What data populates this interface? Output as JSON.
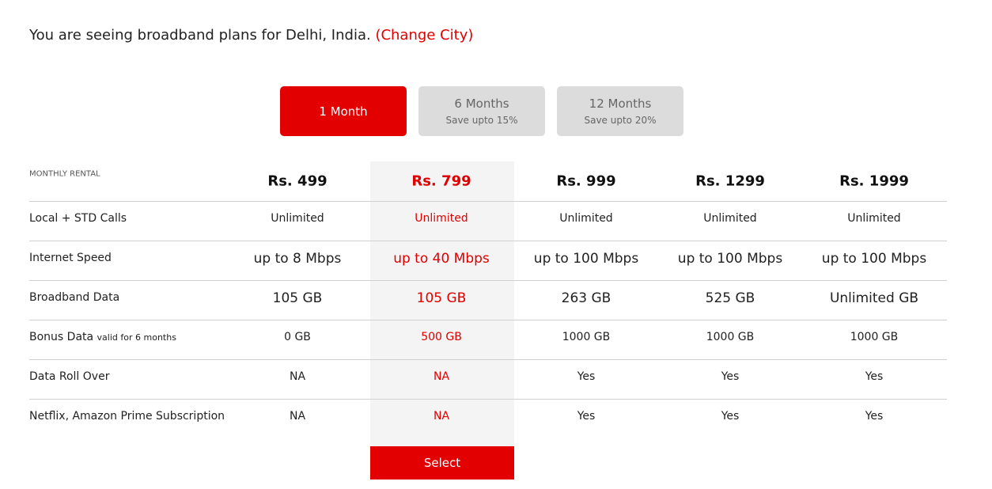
{
  "header": {
    "location_text": "You are seeing broadband plans for Delhi, India.",
    "change_city": "(Change City)"
  },
  "tabs": [
    {
      "label": "1 Month"
    },
    {
      "label": "6 Months",
      "note": "Save upto 15%"
    },
    {
      "label": "12 Months",
      "note": "Save upto 20%"
    }
  ],
  "table": {
    "header_label": "MONTHLY RENTAL",
    "plans": [
      "Rs. 499",
      "Rs. 799",
      "Rs. 999",
      "Rs. 1299",
      "Rs. 1999"
    ],
    "rows": [
      {
        "label": "Local + STD Calls",
        "values": [
          "Unlimited",
          "Unlimited",
          "Unlimited",
          "Unlimited",
          "Unlimited"
        ]
      },
      {
        "label": "Internet Speed",
        "values": [
          "up to 8 Mbps",
          "up to 40 Mbps",
          "up to 100 Mbps",
          "up to 100 Mbps",
          "up to 100 Mbps"
        ]
      },
      {
        "label": "Broadband Data",
        "values": [
          "105 GB",
          "105 GB",
          "263 GB",
          "525 GB",
          "Unlimited GB"
        ]
      },
      {
        "label": "Bonus Data",
        "note": "valid for 6 months",
        "values": [
          "0 GB",
          "500 GB",
          "1000 GB",
          "1000 GB",
          "1000 GB"
        ]
      },
      {
        "label": "Data Roll Over",
        "values": [
          "NA",
          "NA",
          "Yes",
          "Yes",
          "Yes"
        ]
      },
      {
        "label": "Netflix, Amazon Prime Subscription",
        "values": [
          "NA",
          "NA",
          "Yes",
          "Yes",
          "Yes"
        ]
      }
    ]
  },
  "select": "Select"
}
